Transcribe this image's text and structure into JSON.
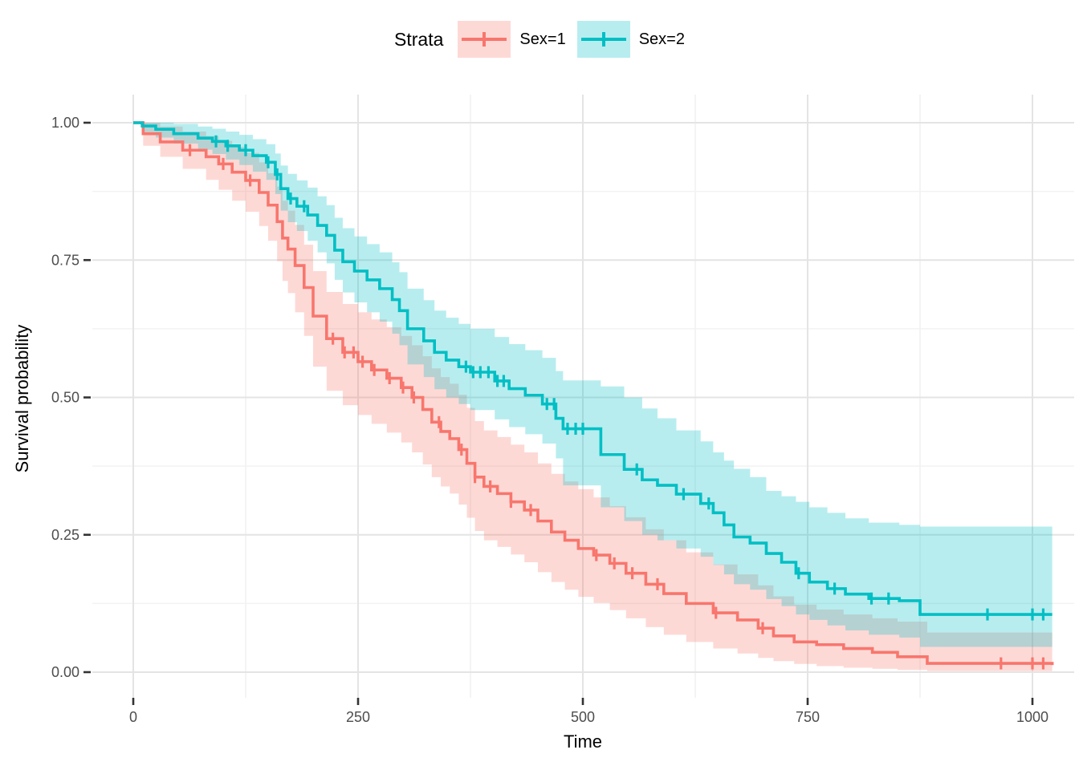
{
  "colors": {
    "background": "#ffffff",
    "grid_major": "#e4e4e4",
    "grid_minor": "#f2f2f2",
    "tick_mark": "#333333",
    "tick_label": "#4d4d4d",
    "axis_title": "#000000",
    "sex1": "#F8766D",
    "sex2": "#00BFC4",
    "band_opacity": 0.28
  },
  "chart_data": {
    "type": "line",
    "subtype": "kaplan-meier-step-with-confidence-bands",
    "title": "",
    "legend_title": "Strata",
    "legend_position": "top",
    "xlabel": "Time",
    "ylabel": "Survival probability",
    "xlim": [
      0,
      1025
    ],
    "ylim": [
      0,
      1
    ],
    "grid": "major+minor",
    "x_ticks": [
      0,
      250,
      500,
      750,
      1000
    ],
    "x_tick_labels": [
      "0",
      "250",
      "500",
      "750",
      "1000"
    ],
    "minor_x_ticks": [
      125,
      375,
      625,
      875
    ],
    "y_ticks": [
      0,
      0.25,
      0.5,
      0.75,
      1.0
    ],
    "y_tick_labels": [
      "0.00",
      "0.25",
      "0.50",
      "0.75",
      "1.00"
    ],
    "minor_y_ticks": [
      0.125,
      0.375,
      0.625,
      0.875
    ],
    "series": [
      {
        "name": "Sex=1",
        "color": "#F8766D",
        "steps": [
          [
            0,
            1.0,
            1.0,
            1.0
          ],
          [
            11,
            0.98,
            0.958,
            1.0
          ],
          [
            30,
            0.965,
            0.938,
            0.993
          ],
          [
            55,
            0.95,
            0.916,
            0.984
          ],
          [
            81,
            0.938,
            0.896,
            0.976
          ],
          [
            95,
            0.925,
            0.878,
            0.967
          ],
          [
            110,
            0.91,
            0.858,
            0.956
          ],
          [
            125,
            0.895,
            0.838,
            0.945
          ],
          [
            140,
            0.873,
            0.812,
            0.928
          ],
          [
            150,
            0.85,
            0.785,
            0.908
          ],
          [
            160,
            0.82,
            0.748,
            0.884
          ],
          [
            166,
            0.79,
            0.712,
            0.858
          ],
          [
            172,
            0.77,
            0.69,
            0.84
          ],
          [
            180,
            0.74,
            0.655,
            0.814
          ],
          [
            190,
            0.7,
            0.612,
            0.778
          ],
          [
            200,
            0.648,
            0.556,
            0.73
          ],
          [
            215,
            0.607,
            0.512,
            0.692
          ],
          [
            233,
            0.582,
            0.486,
            0.67
          ],
          [
            250,
            0.565,
            0.468,
            0.655
          ],
          [
            265,
            0.55,
            0.452,
            0.642
          ],
          [
            282,
            0.535,
            0.436,
            0.628
          ],
          [
            298,
            0.518,
            0.418,
            0.612
          ],
          [
            310,
            0.5,
            0.4,
            0.595
          ],
          [
            322,
            0.478,
            0.378,
            0.575
          ],
          [
            332,
            0.455,
            0.355,
            0.553
          ],
          [
            342,
            0.438,
            0.338,
            0.537
          ],
          [
            352,
            0.425,
            0.325,
            0.525
          ],
          [
            362,
            0.405,
            0.305,
            0.505
          ],
          [
            371,
            0.38,
            0.281,
            0.481
          ],
          [
            380,
            0.355,
            0.257,
            0.457
          ],
          [
            390,
            0.338,
            0.24,
            0.44
          ],
          [
            405,
            0.325,
            0.228,
            0.428
          ],
          [
            420,
            0.31,
            0.214,
            0.414
          ],
          [
            435,
            0.295,
            0.2,
            0.4
          ],
          [
            450,
            0.275,
            0.182,
            0.38
          ],
          [
            465,
            0.255,
            0.164,
            0.361
          ],
          [
            480,
            0.24,
            0.15,
            0.347
          ],
          [
            495,
            0.225,
            0.137,
            0.333
          ],
          [
            512,
            0.213,
            0.126,
            0.318
          ],
          [
            530,
            0.198,
            0.113,
            0.302
          ],
          [
            548,
            0.18,
            0.098,
            0.282
          ],
          [
            570,
            0.16,
            0.082,
            0.26
          ],
          [
            590,
            0.143,
            0.068,
            0.24
          ],
          [
            615,
            0.125,
            0.055,
            0.218
          ],
          [
            645,
            0.108,
            0.043,
            0.196
          ],
          [
            672,
            0.095,
            0.034,
            0.178
          ],
          [
            695,
            0.08,
            0.026,
            0.158
          ],
          [
            712,
            0.066,
            0.02,
            0.138
          ],
          [
            735,
            0.055,
            0.015,
            0.123
          ],
          [
            760,
            0.05,
            0.011,
            0.114
          ],
          [
            790,
            0.043,
            0.008,
            0.105
          ],
          [
            822,
            0.036,
            0.006,
            0.098
          ],
          [
            850,
            0.028,
            0.004,
            0.092
          ],
          [
            883,
            0.016,
            0.002,
            0.072
          ],
          [
            1022,
            0.013,
            0.002,
            0.072
          ]
        ],
        "censor_times": [
          63,
          100,
          130,
          222,
          235,
          245,
          255,
          268,
          285,
          300,
          312,
          340,
          365,
          380,
          397,
          420,
          442,
          515,
          535,
          555,
          583,
          648,
          700,
          965,
          1000,
          1012
        ]
      },
      {
        "name": "Sex=2",
        "color": "#00BFC4",
        "steps": [
          [
            0,
            1.0,
            1.0,
            1.0
          ],
          [
            10,
            0.994,
            0.983,
            1.0
          ],
          [
            25,
            0.988,
            0.973,
            1.0
          ],
          [
            45,
            0.98,
            0.962,
            0.998
          ],
          [
            72,
            0.972,
            0.951,
            0.993
          ],
          [
            88,
            0.966,
            0.943,
            0.989
          ],
          [
            103,
            0.958,
            0.933,
            0.984
          ],
          [
            118,
            0.95,
            0.923,
            0.978
          ],
          [
            133,
            0.94,
            0.911,
            0.97
          ],
          [
            148,
            0.928,
            0.896,
            0.961
          ],
          [
            158,
            0.906,
            0.87,
            0.944
          ],
          [
            164,
            0.88,
            0.84,
            0.922
          ],
          [
            172,
            0.862,
            0.819,
            0.907
          ],
          [
            182,
            0.848,
            0.803,
            0.895
          ],
          [
            194,
            0.832,
            0.785,
            0.882
          ],
          [
            205,
            0.813,
            0.764,
            0.866
          ],
          [
            215,
            0.795,
            0.744,
            0.85
          ],
          [
            224,
            0.768,
            0.714,
            0.827
          ],
          [
            233,
            0.747,
            0.691,
            0.808
          ],
          [
            246,
            0.73,
            0.673,
            0.793
          ],
          [
            260,
            0.714,
            0.655,
            0.779
          ],
          [
            274,
            0.698,
            0.638,
            0.764
          ],
          [
            288,
            0.678,
            0.616,
            0.746
          ],
          [
            296,
            0.658,
            0.595,
            0.728
          ],
          [
            305,
            0.625,
            0.56,
            0.698
          ],
          [
            323,
            0.603,
            0.537,
            0.677
          ],
          [
            335,
            0.582,
            0.515,
            0.658
          ],
          [
            348,
            0.568,
            0.5,
            0.645
          ],
          [
            362,
            0.556,
            0.488,
            0.634
          ],
          [
            375,
            0.546,
            0.477,
            0.625
          ],
          [
            402,
            0.53,
            0.46,
            0.61
          ],
          [
            418,
            0.516,
            0.446,
            0.597
          ],
          [
            436,
            0.504,
            0.433,
            0.586
          ],
          [
            455,
            0.488,
            0.416,
            0.572
          ],
          [
            470,
            0.462,
            0.389,
            0.548
          ],
          [
            478,
            0.443,
            0.34,
            0.531
          ],
          [
            520,
            0.396,
            0.3,
            0.52
          ],
          [
            546,
            0.369,
            0.275,
            0.5
          ],
          [
            566,
            0.35,
            0.25,
            0.48
          ],
          [
            583,
            0.34,
            0.24,
            0.462
          ],
          [
            604,
            0.324,
            0.225,
            0.44
          ],
          [
            631,
            0.307,
            0.21,
            0.42
          ],
          [
            645,
            0.29,
            0.195,
            0.4
          ],
          [
            657,
            0.268,
            0.178,
            0.385
          ],
          [
            668,
            0.246,
            0.16,
            0.37
          ],
          [
            686,
            0.235,
            0.15,
            0.355
          ],
          [
            704,
            0.216,
            0.133,
            0.33
          ],
          [
            721,
            0.2,
            0.12,
            0.32
          ],
          [
            737,
            0.18,
            0.105,
            0.31
          ],
          [
            752,
            0.164,
            0.095,
            0.3
          ],
          [
            772,
            0.152,
            0.085,
            0.29
          ],
          [
            792,
            0.142,
            0.076,
            0.28
          ],
          [
            818,
            0.134,
            0.068,
            0.272
          ],
          [
            852,
            0.13,
            0.063,
            0.268
          ],
          [
            875,
            0.105,
            0.046,
            0.265
          ],
          [
            1022,
            0.105,
            0.046,
            0.265
          ]
        ],
        "censor_times": [
          92,
          105,
          125,
          150,
          160,
          175,
          190,
          370,
          378,
          386,
          395,
          405,
          412,
          460,
          468,
          483,
          492,
          500,
          560,
          612,
          640,
          740,
          780,
          821,
          840,
          950,
          1000,
          1012
        ]
      }
    ]
  }
}
